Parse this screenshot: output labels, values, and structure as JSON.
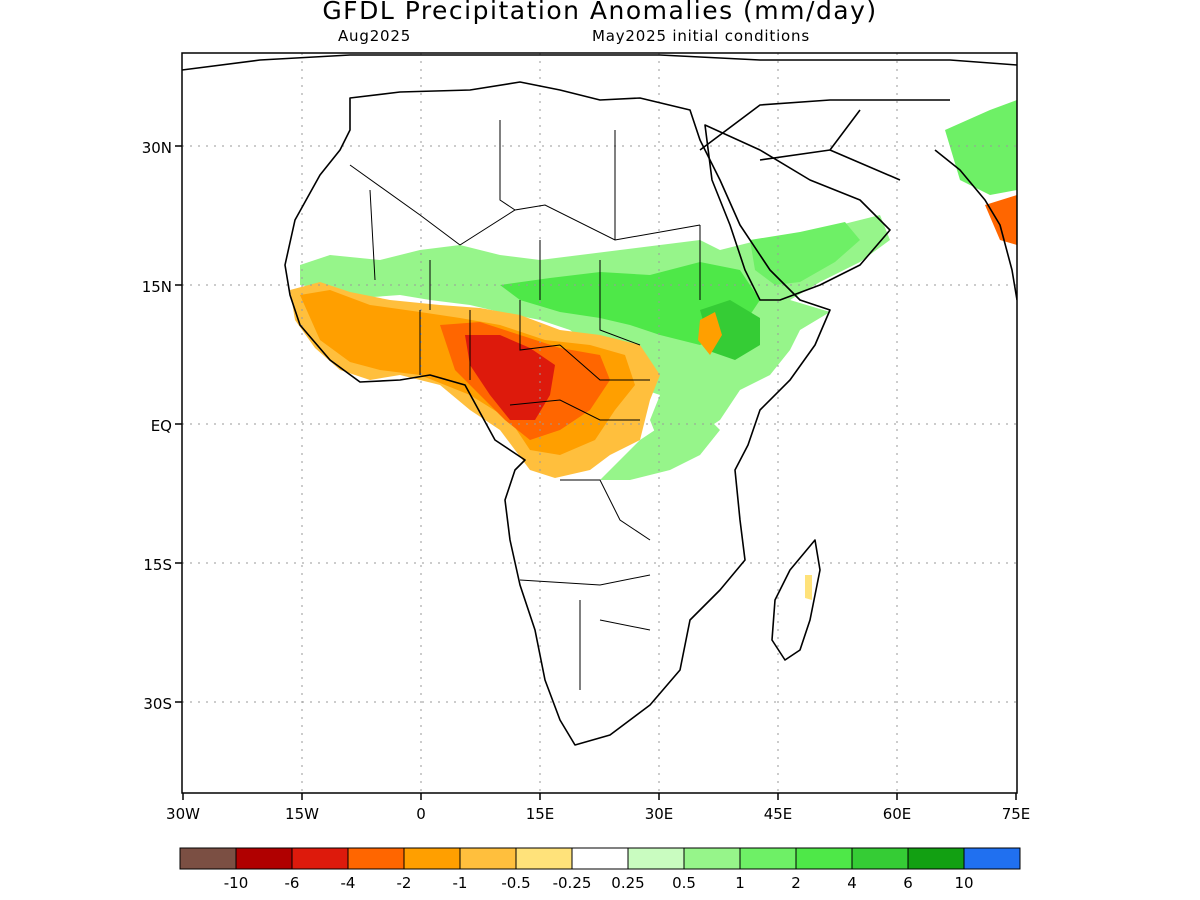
{
  "map": {
    "title": "GFDL Precipitation Anomalies (mm/day)",
    "valid_month": "Aug2025",
    "initial_conditions": "May2025 initial conditions",
    "lat_ticks": [
      "30N",
      "15N",
      "EQ",
      "15S",
      "30S"
    ],
    "lon_ticks": [
      "30W",
      "15W",
      "0",
      "15E",
      "30E",
      "45E",
      "60E",
      "75E"
    ],
    "gridlines": true
  },
  "legend": {
    "colors": [
      "#7b4f43",
      "#b00000",
      "#dd1a0c",
      "#ff6600",
      "#ff9f00",
      "#ffbf3d",
      "#ffe27a",
      "#ffffff",
      "#c9fcc0",
      "#96f58a",
      "#6ef066",
      "#4ee848",
      "#35cc35",
      "#12a012",
      "#2070f0"
    ],
    "labels": [
      "-10",
      "-6",
      "-4",
      "-2",
      "-1",
      "-0.5",
      "-0.25",
      "0.25",
      "0.5",
      "1",
      "2",
      "4",
      "6",
      "10"
    ]
  }
}
